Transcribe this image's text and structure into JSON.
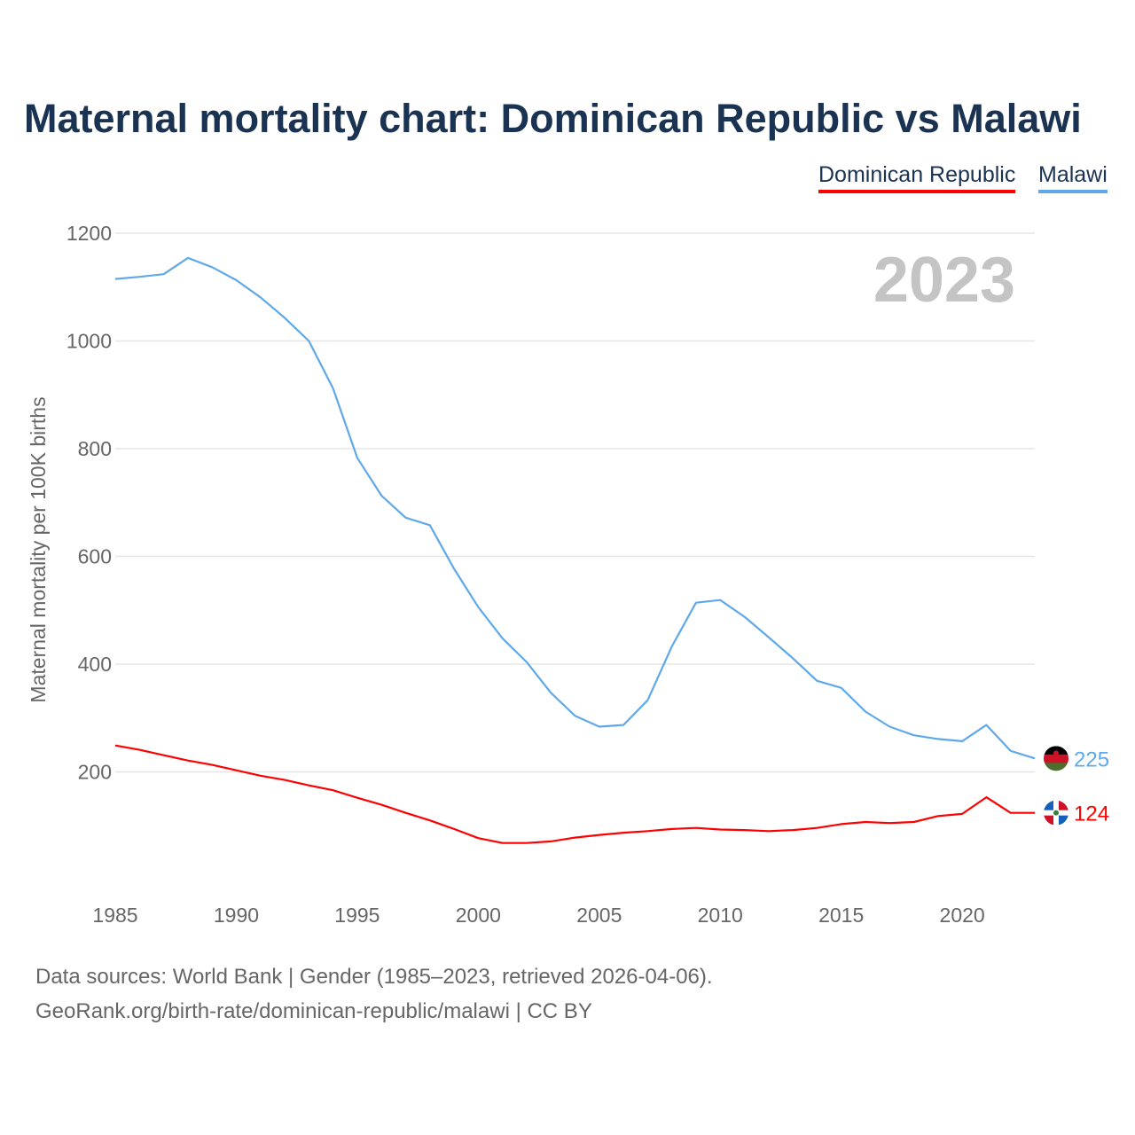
{
  "chart_data": {
    "type": "line",
    "title": "Maternal mortality chart: Dominican Republic vs Malawi",
    "ylabel": "Maternal mortality per 100K births",
    "xlabel": "",
    "ylim": [
      0,
      1200
    ],
    "xlim": [
      1985,
      2023
    ],
    "yticks": [
      200,
      400,
      600,
      800,
      1000,
      1200
    ],
    "xticks": [
      1985,
      1990,
      1995,
      2000,
      2005,
      2010,
      2015,
      2020
    ],
    "grid": true,
    "legend_position": "top-right",
    "year_label": "2023",
    "x": [
      1985,
      1986,
      1987,
      1988,
      1989,
      1990,
      1991,
      1992,
      1993,
      1994,
      1995,
      1996,
      1997,
      1998,
      1999,
      2000,
      2001,
      2002,
      2003,
      2004,
      2005,
      2006,
      2007,
      2008,
      2009,
      2010,
      2011,
      2012,
      2013,
      2014,
      2015,
      2016,
      2017,
      2018,
      2019,
      2020,
      2021,
      2022,
      2023
    ],
    "series": [
      {
        "name": "Dominican Republic",
        "color": "#ff0000",
        "end_label": "124",
        "flag": "dominican-republic-flag",
        "values": [
          249,
          241,
          231,
          221,
          213,
          203,
          193,
          185,
          175,
          166,
          152,
          139,
          124,
          110,
          94,
          77,
          68,
          68,
          71,
          78,
          83,
          87,
          90,
          94,
          96,
          93,
          92,
          90,
          92,
          96,
          103,
          107,
          105,
          107,
          118,
          122,
          153,
          124,
          124
        ]
      },
      {
        "name": "Malawi",
        "color": "#5fa8ea",
        "end_label": "225",
        "flag": "malawi-flag",
        "values": [
          1115,
          1119,
          1124,
          1154,
          1137,
          1113,
          1081,
          1043,
          1000,
          912,
          783,
          713,
          672,
          658,
          577,
          506,
          448,
          404,
          347,
          304,
          284,
          287,
          333,
          433,
          514,
          519,
          488,
          450,
          411,
          369,
          356,
          312,
          284,
          268,
          261,
          257,
          287,
          239,
          225
        ]
      }
    ]
  },
  "footer": {
    "line1": "Data sources: World Bank | Gender (1985–2023, retrieved 2026-04-06).",
    "line2": "GeoRank.org/birth-rate/dominican-republic/malawi | CC BY"
  }
}
